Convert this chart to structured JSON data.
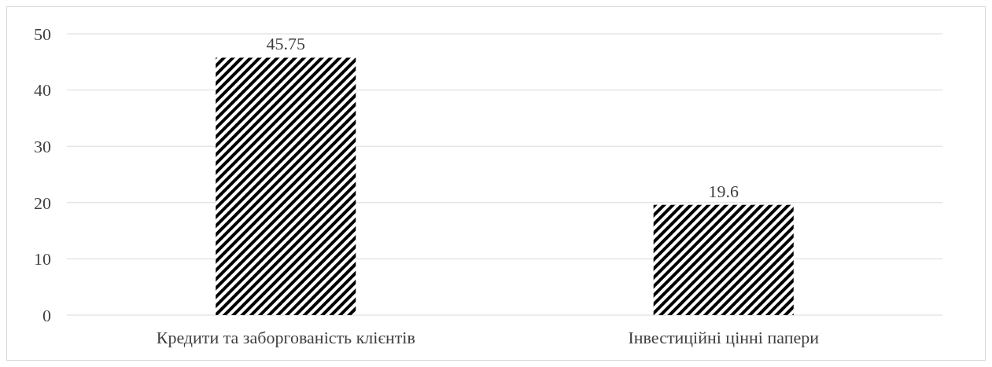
{
  "chart_data": {
    "type": "bar",
    "categories": [
      "Кредити та заборгованість клієнтів",
      "Інвестиційні цінні папери"
    ],
    "values": [
      45.75,
      19.6
    ],
    "color": "#000000",
    "ylim": [
      0,
      50
    ],
    "yticks": [
      0,
      10,
      20,
      30,
      40,
      50
    ],
    "grid": "y",
    "data_labels": true
  }
}
